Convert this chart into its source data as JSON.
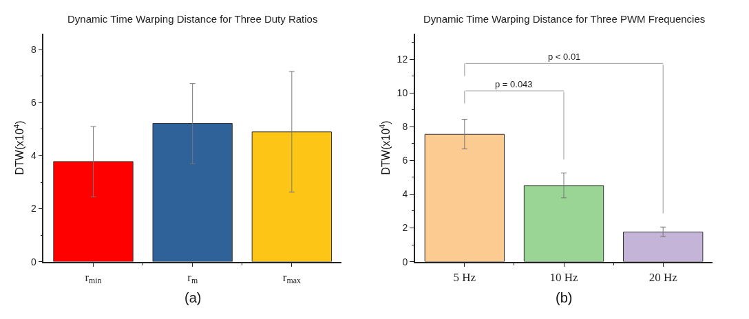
{
  "chart_data": [
    {
      "type": "bar",
      "title": "Dynamic Time Warping Distance for Three Duty Ratios",
      "ylabel": "DTW(x10$^{4}$)",
      "categories": [
        "r$_{min}$",
        "r$_{m}$",
        "r$_{max}$"
      ],
      "values": [
        3.78,
        5.22,
        4.9
      ],
      "colors": [
        "#ff0000",
        "#2e6299",
        "#fdc515"
      ],
      "errors": [
        [
          2.45,
          5.1
        ],
        [
          3.7,
          6.72
        ],
        [
          2.63,
          7.18
        ]
      ],
      "ylim": [
        0,
        8.6
      ],
      "yticks": [
        0,
        2,
        4,
        6,
        8
      ],
      "annotations": [
        "(a)"
      ]
    },
    {
      "type": "bar",
      "title": "Dynamic Time Warping Distance for Three PWM Frequencies",
      "ylabel": "DTW(x10$^{4}$)",
      "categories": [
        "5 Hz",
        "10 Hz",
        "20 Hz"
      ],
      "values": [
        7.55,
        4.51,
        1.76
      ],
      "colors": [
        "#fccb92",
        "#9ad595",
        "#c4b4d8"
      ],
      "errors": [
        [
          6.68,
          8.44
        ],
        [
          3.78,
          5.25
        ],
        [
          1.48,
          2.05
        ]
      ],
      "ylim": [
        0,
        13.5
      ],
      "yticks": [
        0,
        2,
        4,
        6,
        8,
        10,
        12
      ],
      "annotations": [
        "(b)",
        "p = 0.043",
        "p < 0.01"
      ]
    }
  ]
}
